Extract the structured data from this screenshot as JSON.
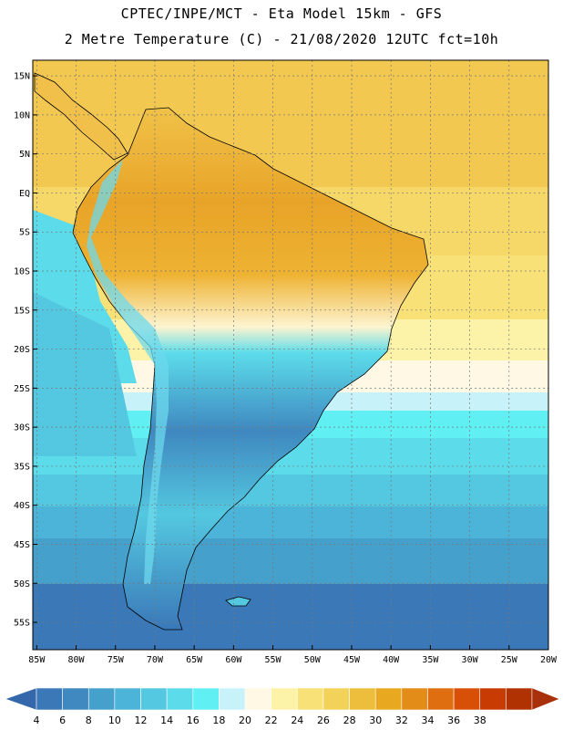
{
  "header": {
    "line1": "CPTEC/INPE/MCT -  Eta Model 15km - GFS",
    "line2": "2 Metre Temperature (C) - 21/08/2020 12UTC fct=10h"
  },
  "map": {
    "lat_labels": [
      "15N",
      "10N",
      "5N",
      "EQ",
      "5S",
      "10S",
      "15S",
      "20S",
      "25S",
      "30S",
      "35S",
      "40S",
      "45S",
      "50S",
      "55S"
    ],
    "lat_values": [
      15,
      10,
      5,
      0,
      -5,
      -10,
      -15,
      -20,
      -25,
      -30,
      -35,
      -40,
      -45,
      -50,
      -55
    ],
    "lon_labels": [
      "85W",
      "80W",
      "75W",
      "70W",
      "65W",
      "60W",
      "55W",
      "50W",
      "45W",
      "40W",
      "35W",
      "30W",
      "25W",
      "20W"
    ],
    "lon_values": [
      -85,
      -80,
      -75,
      -70,
      -65,
      -60,
      -55,
      -50,
      -45,
      -40,
      -35,
      -30,
      -25,
      -20
    ],
    "lon_range": [
      -85.5,
      -20
    ],
    "lat_range": [
      -58.5,
      17
    ]
  },
  "colorbar": {
    "labels": [
      "4",
      "6",
      "8",
      "10",
      "12",
      "14",
      "16",
      "18",
      "20",
      "22",
      "24",
      "26",
      "28",
      "30",
      "32",
      "34",
      "36",
      "38"
    ],
    "colors": [
      "#3a78b8",
      "#3f88c0",
      "#45a0cc",
      "#4cb4d8",
      "#54c8e0",
      "#5cdcea",
      "#60f0f4",
      "#c8f2fa",
      "#fff8e4",
      "#fcf2a8",
      "#f8e278",
      "#f2d258",
      "#ecbe3c",
      "#e8a820",
      "#e48c18",
      "#de6e10",
      "#d85008",
      "#c83c04",
      "#b03202"
    ],
    "underflow_color": "#3468aa",
    "overflow_color": "#a8300a"
  }
}
